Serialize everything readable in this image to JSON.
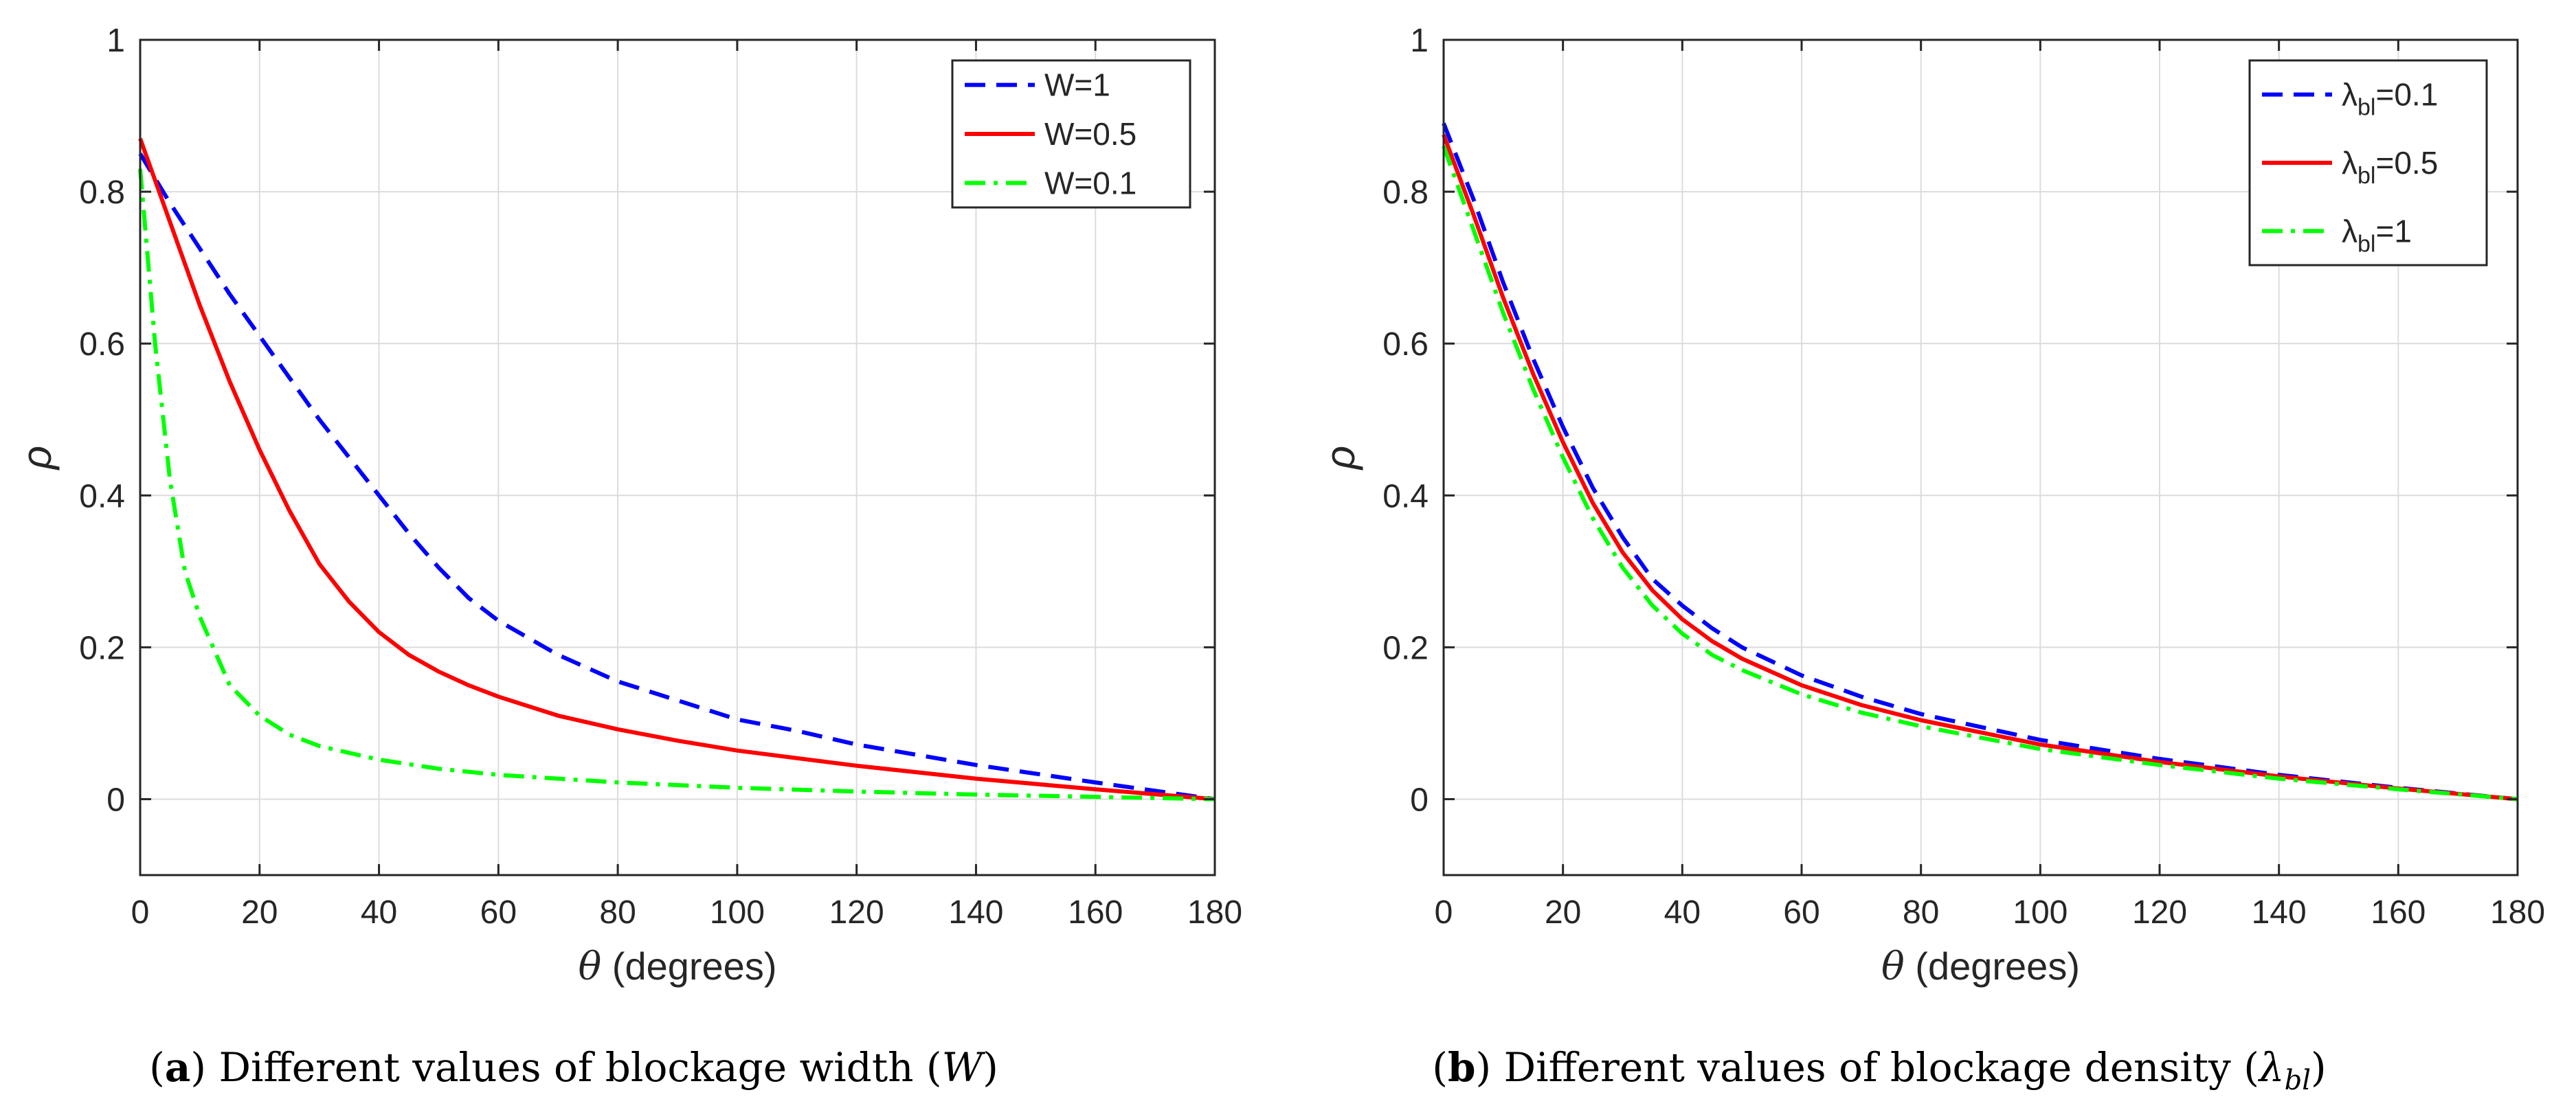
{
  "chart_data": [
    {
      "type": "line",
      "panel_label": "a",
      "caption": "Different values of blockage width",
      "caption_symbol": "W",
      "xlabel": "(degrees)",
      "xlabel_symbol": "θ",
      "ylabel": "ρ",
      "xlim": [
        0,
        180
      ],
      "ylim": [
        -0.1,
        1
      ],
      "xticks": [
        0,
        20,
        40,
        60,
        80,
        100,
        120,
        140,
        160,
        180
      ],
      "yticks": [
        0,
        0.2,
        0.4,
        0.6,
        0.8,
        1
      ],
      "ytick_labels": [
        "0",
        "0.2",
        "0.4",
        "0.6",
        "0.8",
        "1"
      ],
      "grid": true,
      "legend_position": "top-right",
      "series": [
        {
          "name": "W=1",
          "label": "W=1",
          "sub": "",
          "suffix": "",
          "color": "#0000ff",
          "style": "dashed",
          "x": [
            0,
            5,
            10,
            15,
            20,
            25,
            30,
            35,
            40,
            45,
            50,
            55,
            60,
            70,
            80,
            90,
            100,
            110,
            120,
            140,
            160,
            180
          ],
          "y": [
            0.85,
            0.785,
            0.725,
            0.665,
            0.61,
            0.555,
            0.5,
            0.45,
            0.4,
            0.35,
            0.305,
            0.265,
            0.235,
            0.19,
            0.155,
            0.13,
            0.105,
            0.09,
            0.072,
            0.045,
            0.022,
            0.0
          ]
        },
        {
          "name": "W=0.5",
          "label": "W=0.5",
          "sub": "",
          "suffix": "",
          "color": "#ff0000",
          "style": "solid",
          "x": [
            0,
            5,
            10,
            15,
            20,
            25,
            30,
            35,
            40,
            45,
            50,
            55,
            60,
            70,
            80,
            90,
            100,
            120,
            140,
            160,
            180
          ],
          "y": [
            0.87,
            0.76,
            0.65,
            0.55,
            0.46,
            0.38,
            0.31,
            0.26,
            0.22,
            0.19,
            0.168,
            0.15,
            0.135,
            0.11,
            0.092,
            0.077,
            0.064,
            0.044,
            0.027,
            0.013,
            0.0
          ]
        },
        {
          "name": "W=0.1",
          "label": "W=0.1",
          "sub": "",
          "suffix": "",
          "color": "#00ff00",
          "style": "dashdot",
          "x": [
            0,
            2.5,
            5,
            7.5,
            10,
            15,
            20,
            25,
            30,
            40,
            50,
            60,
            80,
            100,
            120,
            140,
            160,
            180
          ],
          "y": [
            0.83,
            0.6,
            0.42,
            0.3,
            0.24,
            0.15,
            0.11,
            0.085,
            0.07,
            0.052,
            0.04,
            0.032,
            0.022,
            0.015,
            0.01,
            0.006,
            0.003,
            0.0
          ]
        }
      ]
    },
    {
      "type": "line",
      "panel_label": "b",
      "caption": "Different values of blockage density",
      "caption_symbol": "λ",
      "caption_symbol_sub": "bl",
      "xlabel": "(degrees)",
      "xlabel_symbol": "θ",
      "ylabel": "ρ",
      "xlim": [
        0,
        180
      ],
      "ylim": [
        -0.1,
        1
      ],
      "xticks": [
        0,
        20,
        40,
        60,
        80,
        100,
        120,
        140,
        160,
        180
      ],
      "yticks": [
        0,
        0.2,
        0.4,
        0.6,
        0.8,
        1
      ],
      "ytick_labels": [
        "0",
        "0.2",
        "0.4",
        "0.6",
        "0.8",
        "1"
      ],
      "grid": true,
      "legend_position": "top-right",
      "series": [
        {
          "name": "λbl=0.1",
          "label": "λ",
          "sub": "bl",
          "suffix": "=0.1",
          "color": "#0000ff",
          "style": "dashed",
          "x": [
            0,
            5,
            10,
            15,
            20,
            25,
            30,
            35,
            40,
            45,
            50,
            60,
            70,
            80,
            100,
            120,
            140,
            160,
            180
          ],
          "y": [
            0.89,
            0.79,
            0.68,
            0.58,
            0.49,
            0.41,
            0.345,
            0.29,
            0.255,
            0.225,
            0.2,
            0.163,
            0.135,
            0.112,
            0.078,
            0.053,
            0.032,
            0.015,
            0.0
          ]
        },
        {
          "name": "λbl=0.5",
          "label": "λ",
          "sub": "bl",
          "suffix": "=0.5",
          "color": "#ff0000",
          "style": "solid",
          "x": [
            0,
            5,
            10,
            15,
            20,
            25,
            30,
            35,
            40,
            45,
            50,
            60,
            70,
            80,
            100,
            120,
            140,
            160,
            180
          ],
          "y": [
            0.875,
            0.77,
            0.66,
            0.56,
            0.47,
            0.39,
            0.325,
            0.275,
            0.237,
            0.208,
            0.185,
            0.15,
            0.124,
            0.104,
            0.072,
            0.049,
            0.03,
            0.014,
            0.0
          ]
        },
        {
          "name": "λbl=1",
          "label": "λ",
          "sub": "bl",
          "suffix": "=1",
          "color": "#00ff00",
          "style": "dashdot",
          "x": [
            0,
            5,
            10,
            15,
            20,
            25,
            30,
            35,
            40,
            45,
            50,
            60,
            70,
            80,
            100,
            120,
            140,
            160,
            180
          ],
          "y": [
            0.86,
            0.75,
            0.64,
            0.54,
            0.45,
            0.37,
            0.305,
            0.255,
            0.218,
            0.19,
            0.17,
            0.138,
            0.114,
            0.096,
            0.066,
            0.045,
            0.027,
            0.013,
            0.0
          ]
        }
      ]
    }
  ]
}
